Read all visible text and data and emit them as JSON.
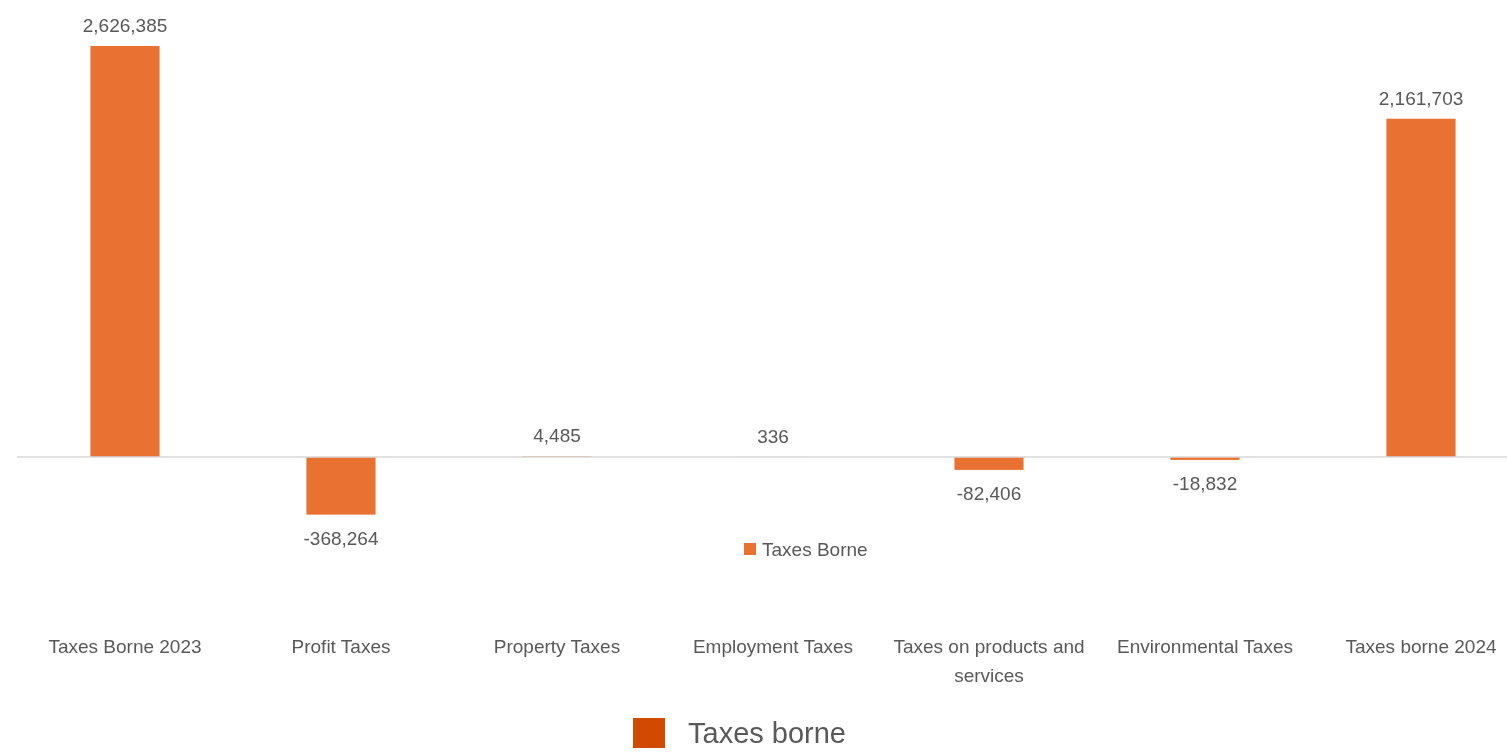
{
  "chart_data": {
    "type": "bar",
    "categories": [
      "Taxes Borne 2023",
      "Profit Taxes",
      "Property Taxes",
      "Employment Taxes",
      "Taxes on products and services",
      "Environmental Taxes",
      "Taxes borne 2024"
    ],
    "series": [
      {
        "name": "Taxes Borne",
        "color": "#e97132",
        "values": [
          2626385,
          -368264,
          4485,
          336,
          -82406,
          -18832,
          2161703
        ],
        "value_labels": [
          "2,626,385",
          "-368,264",
          "4,485",
          "336",
          "-82,406",
          "-18,832",
          "2,161,703"
        ]
      },
      {
        "name": "Taxes borne",
        "color": "#d04a02",
        "values": [
          null,
          null,
          null,
          null,
          null,
          null,
          null
        ]
      }
    ],
    "legend": "bottom"
  }
}
